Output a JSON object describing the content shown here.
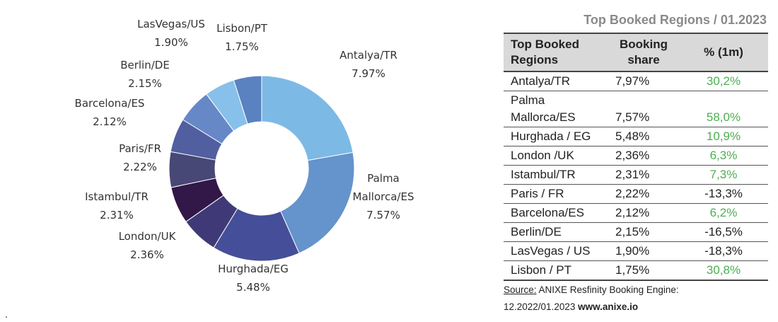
{
  "chart_data": {
    "type": "pie",
    "donut": true,
    "title": "",
    "slices": [
      {
        "label": "Antalya/TR",
        "pct": "7.97%",
        "value": 7.97,
        "color": "#7db9e5"
      },
      {
        "label": "Palma Mallorca/ES",
        "label_lines": [
          "Palma",
          "Mallorca/ES"
        ],
        "pct": "7.57%",
        "value": 7.57,
        "color": "#6593cc"
      },
      {
        "label": "Hurghada/EG",
        "pct": "5.48%",
        "value": 5.48,
        "color": "#454e98"
      },
      {
        "label": "London/UK",
        "pct": "2.36%",
        "value": 2.36,
        "color": "#3f3a77"
      },
      {
        "label": "Istambul/TR",
        "pct": "2.31%",
        "value": 2.31,
        "color": "#321848"
      },
      {
        "label": "Paris/FR",
        "pct": "2.22%",
        "value": 2.22,
        "color": "#484877"
      },
      {
        "label": "Barcelona/ES",
        "pct": "2.12%",
        "value": 2.12,
        "color": "#515ea0"
      },
      {
        "label": "Berlin/DE",
        "pct": "2.15%",
        "value": 2.15,
        "color": "#6688c7"
      },
      {
        "label": "LasVegas/US",
        "pct": "1.90%",
        "value": 1.9,
        "color": "#87c0ea"
      },
      {
        "label": "Lisbon/PT",
        "pct": "1.75%",
        "value": 1.75,
        "color": "#5a82c0"
      }
    ]
  },
  "table": {
    "title": "Top Booked Regions / 01.2023",
    "headers": [
      "Top Booked Regions",
      "Booking share",
      "% (1m)"
    ],
    "header_lines": [
      [
        "Top Booked",
        "Regions"
      ],
      [
        "Booking",
        "share"
      ],
      [
        "% (1m)"
      ]
    ],
    "rows": [
      {
        "region": [
          "Antalya/TR"
        ],
        "share": "7,97%",
        "change": "30,2%",
        "positive": true
      },
      {
        "region": [
          "Palma",
          "Mallorca/ES"
        ],
        "share": "7,57%",
        "change": "58,0%",
        "positive": true
      },
      {
        "region": [
          "Hurghada / EG"
        ],
        "share": "5,48%",
        "change": "10,9%",
        "positive": true
      },
      {
        "region": [
          "London /UK"
        ],
        "share": "2,36%",
        "change": "6,3%",
        "positive": true
      },
      {
        "region": [
          "Istambul/TR"
        ],
        "share": "2,31%",
        "change": "7,3%",
        "positive": true
      },
      {
        "region": [
          "Paris / FR"
        ],
        "share": "2,22%",
        "change": "-13,3%",
        "positive": false
      },
      {
        "region": [
          "Barcelona/ES"
        ],
        "share": "2,12%",
        "change": "6,2%",
        "positive": true
      },
      {
        "region": [
          "Berlin/DE"
        ],
        "share": "2,15%",
        "change": "-16,5%",
        "positive": false
      },
      {
        "region": [
          "LasVegas / US"
        ],
        "share": "1,90%",
        "change": "-18,3%",
        "positive": false
      },
      {
        "region": [
          "Lisbon / PT"
        ],
        "share": "1,75%",
        "change": "30,8%",
        "positive": true
      }
    ],
    "positive_color": "#4caf50"
  },
  "source": {
    "label": "Source:",
    "text": " ANIXE Resfinity Booking Engine:",
    "period": "12.2022/01.2023 ",
    "url": "www.anixe.io"
  }
}
